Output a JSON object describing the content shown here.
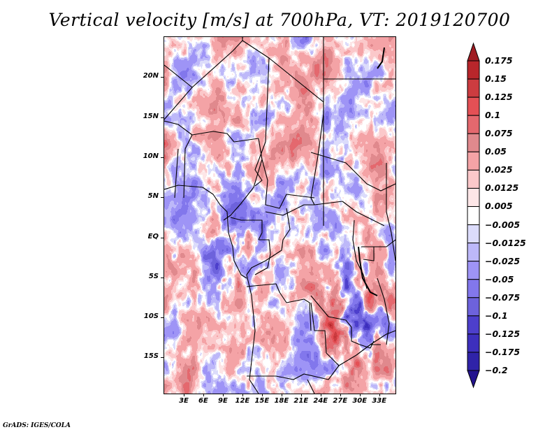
{
  "chart_data": {
    "type": "heatmap",
    "title": "Vertical velocity [m/s] at 700hPa, VT: 2019120700",
    "variable": "Vertical velocity",
    "units": "m/s",
    "level": "700hPa",
    "valid_time": "2019120700",
    "xlabel": "",
    "ylabel": "",
    "lon_range": [
      0,
      35.5
    ],
    "lat_range": [
      -19.5,
      25
    ],
    "x_ticks": [
      {
        "value": 3,
        "label": "3E"
      },
      {
        "value": 6,
        "label": "6E"
      },
      {
        "value": 9,
        "label": "9E"
      },
      {
        "value": 12,
        "label": "12E"
      },
      {
        "value": 15,
        "label": "15E"
      },
      {
        "value": 18,
        "label": "18E"
      },
      {
        "value": 21,
        "label": "21E"
      },
      {
        "value": 24,
        "label": "24E"
      },
      {
        "value": 27,
        "label": "27E"
      },
      {
        "value": 30,
        "label": "30E"
      },
      {
        "value": 33,
        "label": "33E"
      }
    ],
    "y_ticks": [
      {
        "value": 20,
        "label": "20N"
      },
      {
        "value": 15,
        "label": "15N"
      },
      {
        "value": 10,
        "label": "10N"
      },
      {
        "value": 5,
        "label": "5N"
      },
      {
        "value": 0,
        "label": "EQ"
      },
      {
        "value": -5,
        "label": "5S"
      },
      {
        "value": -10,
        "label": "10S"
      },
      {
        "value": -15,
        "label": "15S"
      }
    ],
    "colorbar": {
      "placement": "right",
      "extend": "both",
      "levels": [
        0.175,
        0.15,
        0.125,
        0.1,
        0.075,
        0.05,
        0.025,
        0.0125,
        0.005,
        -0.005,
        -0.0125,
        -0.025,
        -0.05,
        -0.075,
        -0.1,
        -0.125,
        -0.175,
        -0.2
      ],
      "labels": [
        "0.175",
        "0.15",
        "0.125",
        "0.1",
        "0.075",
        "0.05",
        "0.025",
        "0.0125",
        "0.005",
        "−0.005",
        "−0.0125",
        "−0.025",
        "−0.05",
        "−0.075",
        "−0.1",
        "−0.125",
        "−0.175",
        "−0.2"
      ],
      "colors_top_to_bottom": [
        "#a01c22",
        "#b8262b",
        "#cc3c40",
        "#e45055",
        "#e4686e",
        "#e0898d",
        "#f4a3a6",
        "#fbc8ca",
        "#fde6e7",
        "#ffffff",
        "#dcdcfb",
        "#bdb8f9",
        "#9e94f6",
        "#8277ec",
        "#6d62dc",
        "#4d3fcc",
        "#3d2fbd",
        "#2f23a8",
        "#23138e"
      ]
    },
    "field_description": "Noisy mesoscale field of mixed positive (red) and negative (blue) vertical velocity over Central/West Africa; strongest values (|w| > 0.1) in the south-east near 25-32E, 5-15S"
  },
  "footer": {
    "credit": "GrADS: IGES/COLA"
  }
}
